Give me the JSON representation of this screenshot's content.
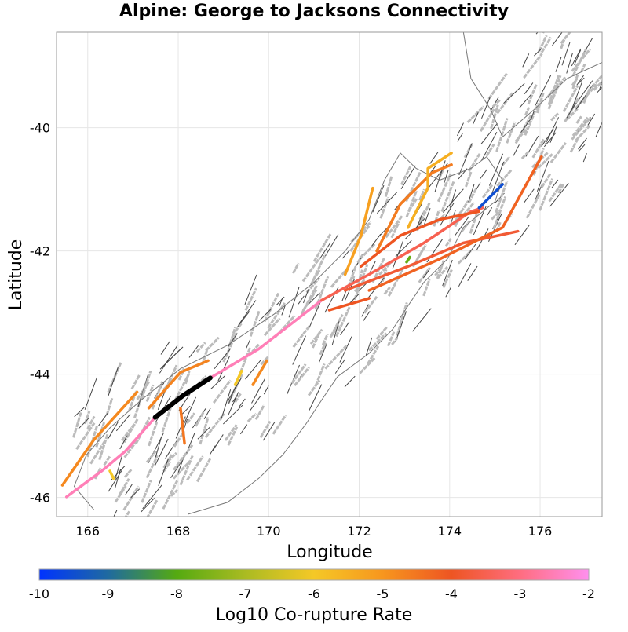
{
  "title": "Alpine: George to Jacksons Connectivity",
  "chart_data": {
    "type": "map",
    "title": "Alpine: George to Jacksons Connectivity",
    "xlabel": "Longitude",
    "ylabel": "Latitude",
    "xlim": [
      165.31,
      177.37
    ],
    "ylim": [
      -46.31,
      -38.45
    ],
    "xticks": [
      166,
      168,
      170,
      172,
      174,
      176
    ],
    "yticks": [
      -40,
      -42,
      -44,
      -46
    ],
    "grid": true,
    "colorbar": {
      "label": "Log10 Co-rupture Rate",
      "range": [
        -10,
        -2
      ],
      "ticks": [
        -10,
        -9,
        -8,
        -7,
        -6,
        -5,
        -4,
        -3,
        -2
      ],
      "stops": [
        {
          "v": -10,
          "color": "#0033ff"
        },
        {
          "v": -9,
          "color": "#1f6aa0"
        },
        {
          "v": -8,
          "color": "#55aa11"
        },
        {
          "v": -7,
          "color": "#aabb22"
        },
        {
          "v": -6,
          "color": "#f5c826"
        },
        {
          "v": -5,
          "color": "#f7961e"
        },
        {
          "v": -4,
          "color": "#ee5522"
        },
        {
          "v": -3,
          "color": "#ff6d80"
        },
        {
          "v": -2,
          "color": "#ff90ee"
        }
      ],
      "placement": "bottom"
    },
    "coastline": [
      [
        [
          166.14,
          -46.2
        ],
        [
          165.7,
          -45.82
        ],
        [
          165.97,
          -45.31
        ],
        [
          166.49,
          -44.87
        ],
        [
          167.18,
          -44.42
        ],
        [
          168.05,
          -43.91
        ],
        [
          169.09,
          -43.53
        ],
        [
          170.13,
          -43.02
        ],
        [
          171.0,
          -42.51
        ],
        [
          171.69,
          -42.0
        ],
        [
          172.22,
          -41.49
        ],
        [
          172.56,
          -40.85
        ],
        [
          172.91,
          -40.41
        ],
        [
          173.26,
          -40.66
        ],
        [
          173.78,
          -40.85
        ],
        [
          174.47,
          -40.66
        ],
        [
          174.82,
          -40.47
        ],
        [
          175.17,
          -40.85
        ],
        [
          175.0,
          -41.2
        ],
        [
          174.3,
          -41.62
        ],
        [
          173.95,
          -42.13
        ],
        [
          173.43,
          -42.51
        ],
        [
          173.08,
          -42.89
        ],
        [
          172.74,
          -43.27
        ],
        [
          172.22,
          -43.66
        ],
        [
          171.52,
          -44.04
        ],
        [
          171.17,
          -44.42
        ],
        [
          170.83,
          -44.8
        ],
        [
          170.31,
          -45.31
        ],
        [
          169.78,
          -45.69
        ],
        [
          169.09,
          -46.08
        ],
        [
          168.22,
          -46.27
        ]
      ],
      [
        [
          174.3,
          -38.43
        ],
        [
          174.47,
          -39.2
        ],
        [
          174.91,
          -39.71
        ],
        [
          175.17,
          -40.15
        ],
        [
          175.86,
          -39.71
        ],
        [
          176.6,
          -39.2
        ],
        [
          177.37,
          -38.94
        ]
      ]
    ],
    "target_rupture": {
      "name": "Alpine: George to Jacksons",
      "color": "#000000",
      "points": [
        [
          167.49,
          -44.7
        ],
        [
          168.1,
          -44.35
        ],
        [
          168.71,
          -44.06
        ]
      ]
    },
    "ruptures": [
      {
        "value": -2.5,
        "points": [
          [
            165.53,
            -45.99
          ],
          [
            166.31,
            -45.57
          ],
          [
            166.83,
            -45.25
          ],
          [
            167.49,
            -44.7
          ]
        ]
      },
      {
        "value": -2.5,
        "points": [
          [
            168.71,
            -44.06
          ],
          [
            169.78,
            -43.59
          ],
          [
            171.17,
            -42.8
          ]
        ]
      },
      {
        "value": -3.5,
        "points": [
          [
            171.17,
            -42.8
          ],
          [
            172.22,
            -42.38
          ],
          [
            173.43,
            -41.87
          ],
          [
            174.47,
            -41.36
          ],
          [
            174.73,
            -41.3
          ]
        ]
      },
      {
        "value": -4.0,
        "points": [
          [
            172.04,
            -42.25
          ],
          [
            172.91,
            -41.75
          ],
          [
            173.78,
            -41.49
          ],
          [
            174.65,
            -41.36
          ]
        ]
      },
      {
        "value": -3.8,
        "points": [
          [
            171.69,
            -42.64
          ],
          [
            173.08,
            -42.25
          ],
          [
            174.3,
            -41.87
          ],
          [
            175.51,
            -41.68
          ]
        ]
      },
      {
        "value": -4.2,
        "points": [
          [
            172.22,
            -42.64
          ],
          [
            173.78,
            -42.13
          ],
          [
            175.17,
            -41.62
          ],
          [
            176.03,
            -40.47
          ]
        ]
      },
      {
        "value": -4.6,
        "points": [
          [
            172.39,
            -42.0
          ],
          [
            172.91,
            -41.24
          ],
          [
            173.61,
            -40.73
          ],
          [
            174.04,
            -40.6
          ]
        ]
      },
      {
        "value": -5.5,
        "points": [
          [
            173.08,
            -41.62
          ],
          [
            173.52,
            -40.98
          ],
          [
            173.52,
            -40.66
          ],
          [
            174.04,
            -40.41
          ]
        ]
      },
      {
        "value": -5.2,
        "points": [
          [
            171.69,
            -42.38
          ],
          [
            172.04,
            -41.75
          ],
          [
            172.3,
            -40.98
          ]
        ]
      },
      {
        "value": -9.5,
        "points": [
          [
            174.65,
            -41.3
          ],
          [
            175.17,
            -40.92
          ]
        ]
      },
      {
        "value": -4.7,
        "points": [
          [
            167.35,
            -44.55
          ],
          [
            168.05,
            -43.97
          ],
          [
            168.66,
            -43.78
          ]
        ]
      },
      {
        "value": -4.5,
        "points": [
          [
            168.05,
            -44.55
          ],
          [
            168.14,
            -45.12
          ]
        ]
      },
      {
        "value": -4.8,
        "points": [
          [
            165.44,
            -45.8
          ],
          [
            166.14,
            -45.06
          ],
          [
            167.09,
            -44.29
          ]
        ]
      },
      {
        "value": -6.0,
        "points": [
          [
            169.26,
            -44.17
          ],
          [
            169.4,
            -43.95
          ]
        ]
      },
      {
        "value": -4.8,
        "points": [
          [
            169.65,
            -44.17
          ],
          [
            169.96,
            -43.78
          ]
        ]
      },
      {
        "value": -6.0,
        "points": [
          [
            166.49,
            -45.57
          ],
          [
            166.57,
            -45.69
          ]
        ]
      },
      {
        "value": -4.0,
        "points": [
          [
            171.34,
            -42.96
          ],
          [
            172.22,
            -42.77
          ]
        ]
      },
      {
        "value": -7.8,
        "points": [
          [
            173.05,
            -42.18
          ],
          [
            173.12,
            -42.1
          ]
        ]
      }
    ]
  }
}
